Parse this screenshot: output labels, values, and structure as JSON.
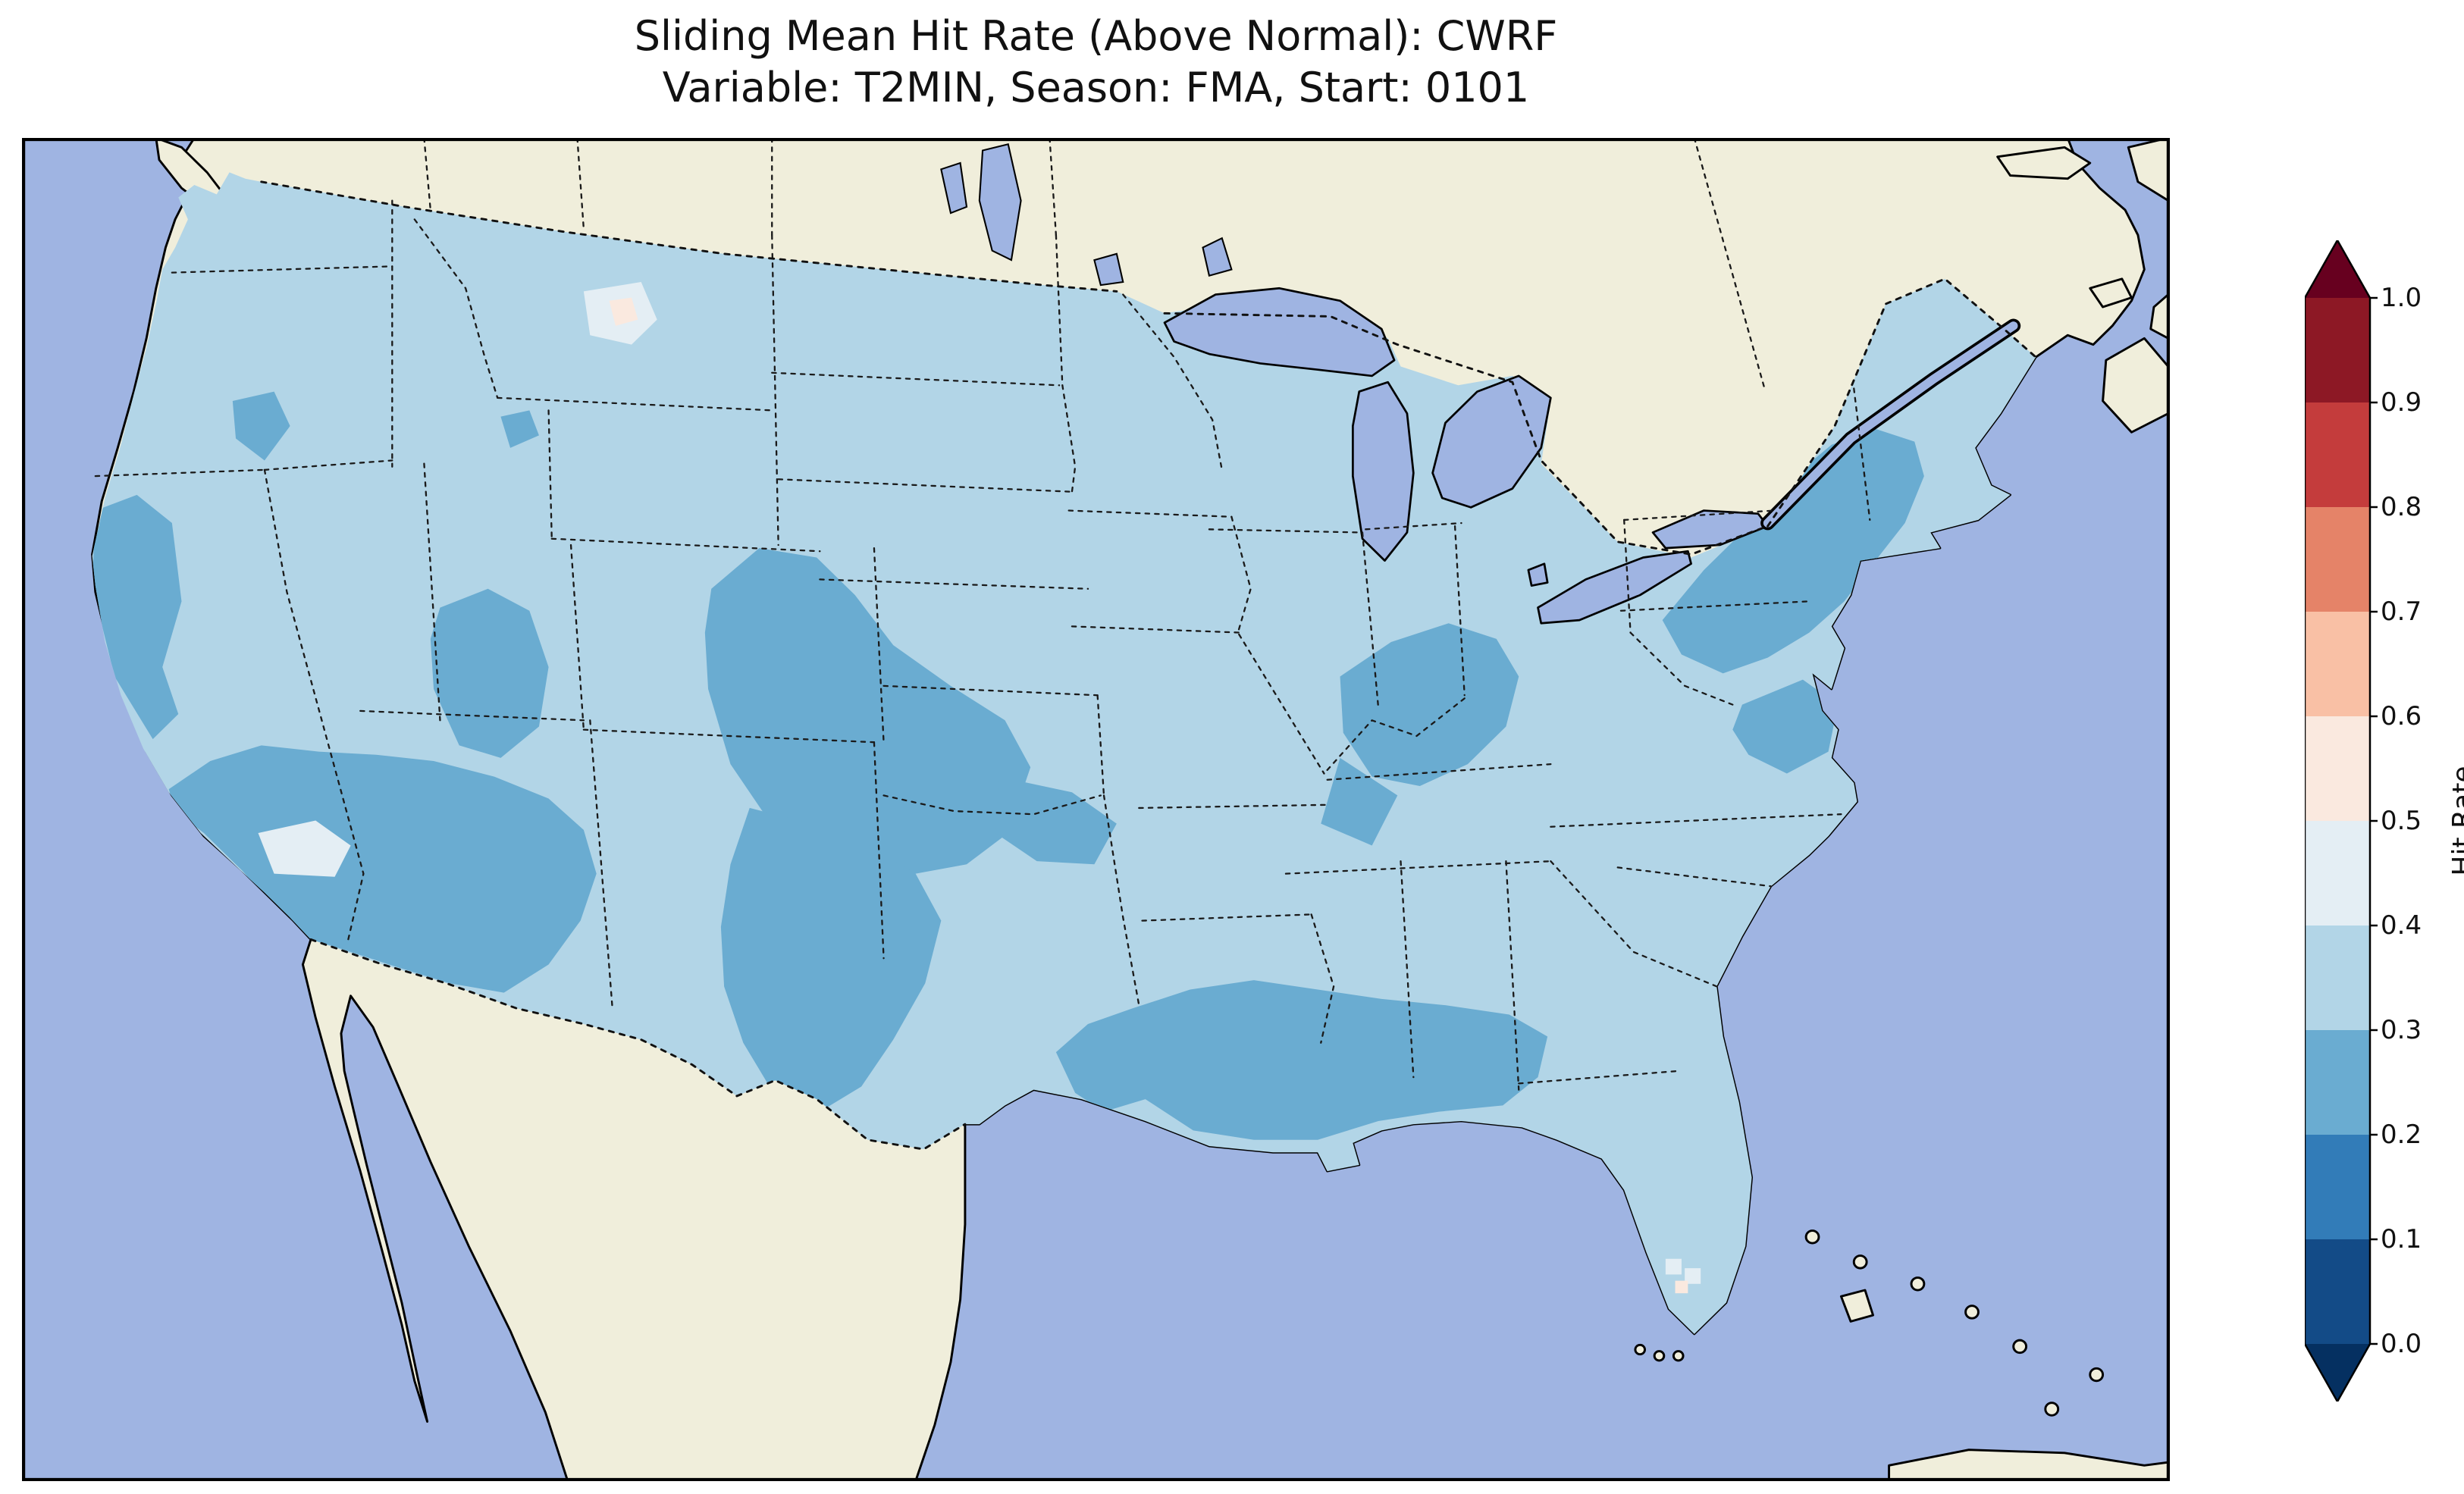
{
  "figure": {
    "title_line1": "Sliding Mean Hit Rate (Above Normal): CWRF",
    "title_line2": "Variable: T2MIN, Season: FMA, Start: 0101"
  },
  "chart_data": {
    "type": "heatmap",
    "subtype": "geographic gridded hit-rate map over the contiguous United States",
    "title": "Sliding Mean Hit Rate (Above Normal): CWRF",
    "subtitle": "Variable: T2MIN, Season: FMA, Start: 0101",
    "model": "CWRF",
    "metric": "Sliding Mean Hit Rate (Above Normal)",
    "variable": "T2MIN",
    "season": "FMA",
    "start": "0101",
    "region": "Contiguous United States (with surrounding Canada, Mexico, oceans shown unshaded)",
    "legend_position": "right vertical colorbar",
    "colorbar": {
      "label": "Hit Rate",
      "ticks": [
        "0.0",
        "0.1",
        "0.2",
        "0.3",
        "0.4",
        "0.5",
        "0.6",
        "0.7",
        "0.8",
        "0.9",
        "1.0"
      ],
      "tick_values": [
        0.0,
        0.1,
        0.2,
        0.3,
        0.4,
        0.5,
        0.6,
        0.7,
        0.8,
        0.9,
        1.0
      ],
      "range": [
        0.0,
        1.0
      ],
      "colormap": "RdBu_r (10 discrete bins, extended triangles at both ends)",
      "segment_colors_bottom_to_top": [
        "#134b87",
        "#327cb8",
        "#6aacd1",
        "#b2d5e7",
        "#e4eef4",
        "#fae9df",
        "#f9c0a5",
        "#e58368",
        "#c43c3c",
        "#8d1825"
      ],
      "extend_below_color": "#053061",
      "extend_above_color": "#67001f"
    },
    "map_colors": {
      "ocean": "#9fb4e2",
      "land": "#f0eedb",
      "bin23": "#6aacd1",
      "bin34": "#b2d5e7",
      "bin45": "#e4eef4",
      "bin56": "#fae9df"
    },
    "value_summary": [
      {
        "region": "Most of CONUS: Pacific Northwest, northern plains, upper Midwest, interior Southeast, coastal Carolinas, Florida",
        "hit_rate": "0.3-0.4"
      },
      {
        "region": "Southwest (southern California, Arizona, southern Nevada/Utah), central Rockies through New Mexico, Texas, Oklahoma and Kansas plains",
        "hit_rate": "0.2-0.3"
      },
      {
        "region": "Gulf Coast (Texas coast through Louisiana, Mississippi, Alabama, Florida panhandle)",
        "hit_rate": "0.2-0.3"
      },
      {
        "region": "Ohio Valley (Illinois, Indiana, Ohio, Kentucky, Tennessee) and mid-Atlantic Chesapeake area",
        "hit_rate": "0.2-0.3"
      },
      {
        "region": "Northeast (Pennsylvania, New York, New England to northern Maine)",
        "hit_rate": "0.2-0.3"
      },
      {
        "region": "Small patches: northern Montana, northern California coast edge, southern Nevada, south Florida cells",
        "hit_rate": "0.4-0.5"
      },
      {
        "region": "Isolated cells in Montana and south Florida",
        "hit_rate": "0.5-0.6"
      }
    ]
  }
}
